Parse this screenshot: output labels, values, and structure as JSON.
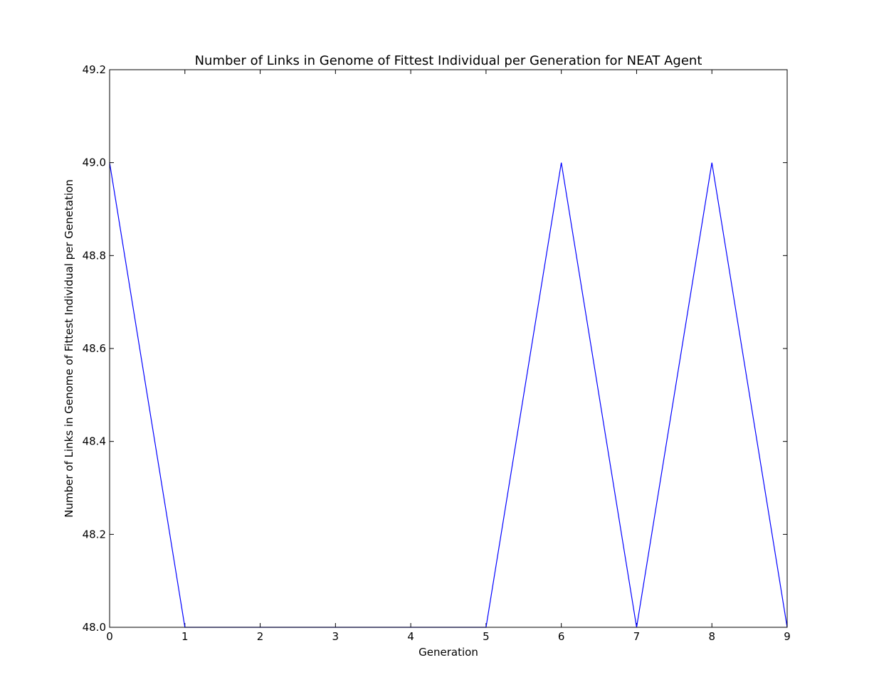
{
  "chart_data": {
    "type": "line",
    "title": "Number of Links in Genome of Fittest Individual per Generation for NEAT Agent",
    "xlabel": "Generation",
    "ylabel": "Number of Links in Genome of Fittest Individual per Genetation",
    "x": [
      0,
      1,
      2,
      3,
      4,
      5,
      6,
      7,
      8,
      9
    ],
    "series": [
      {
        "values": [
          49.0,
          48.0,
          48.0,
          48.0,
          48.0,
          48.0,
          49.0,
          48.0,
          49.0,
          48.0
        ]
      }
    ],
    "xlim": [
      0,
      9
    ],
    "ylim": [
      48.0,
      49.2
    ],
    "xticks": [
      "0",
      "1",
      "2",
      "3",
      "4",
      "5",
      "6",
      "7",
      "8",
      "9"
    ],
    "yticks": [
      "48.0",
      "48.2",
      "48.4",
      "48.6",
      "48.8",
      "49.0",
      "49.2"
    ],
    "grid": false,
    "line_color": "#0000ff"
  }
}
